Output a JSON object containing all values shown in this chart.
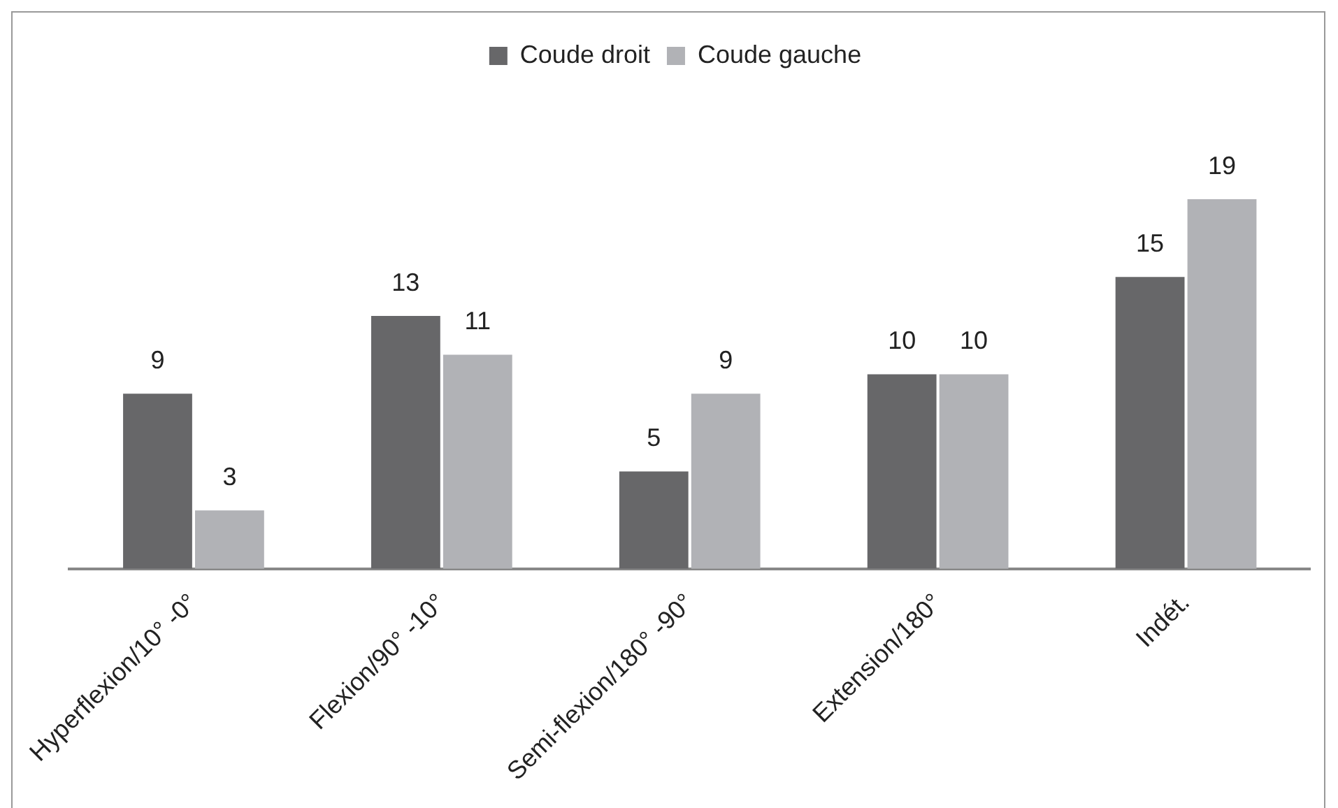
{
  "chart_data": {
    "type": "bar",
    "categories": [
      "Hyperflexion/10° -0°",
      "Flexion/90° -10°",
      "Semi-flexion/180° -90°",
      "Extension/180°",
      "Indét."
    ],
    "series": [
      {
        "name": "Coude droit",
        "color": "#676769",
        "values": [
          9,
          13,
          5,
          10,
          15
        ]
      },
      {
        "name": "Coude gauche",
        "color": "#b1b2b6",
        "values": [
          3,
          11,
          9,
          10,
          19
        ]
      }
    ],
    "data_labels": true,
    "legend": "top",
    "grid": false
  }
}
